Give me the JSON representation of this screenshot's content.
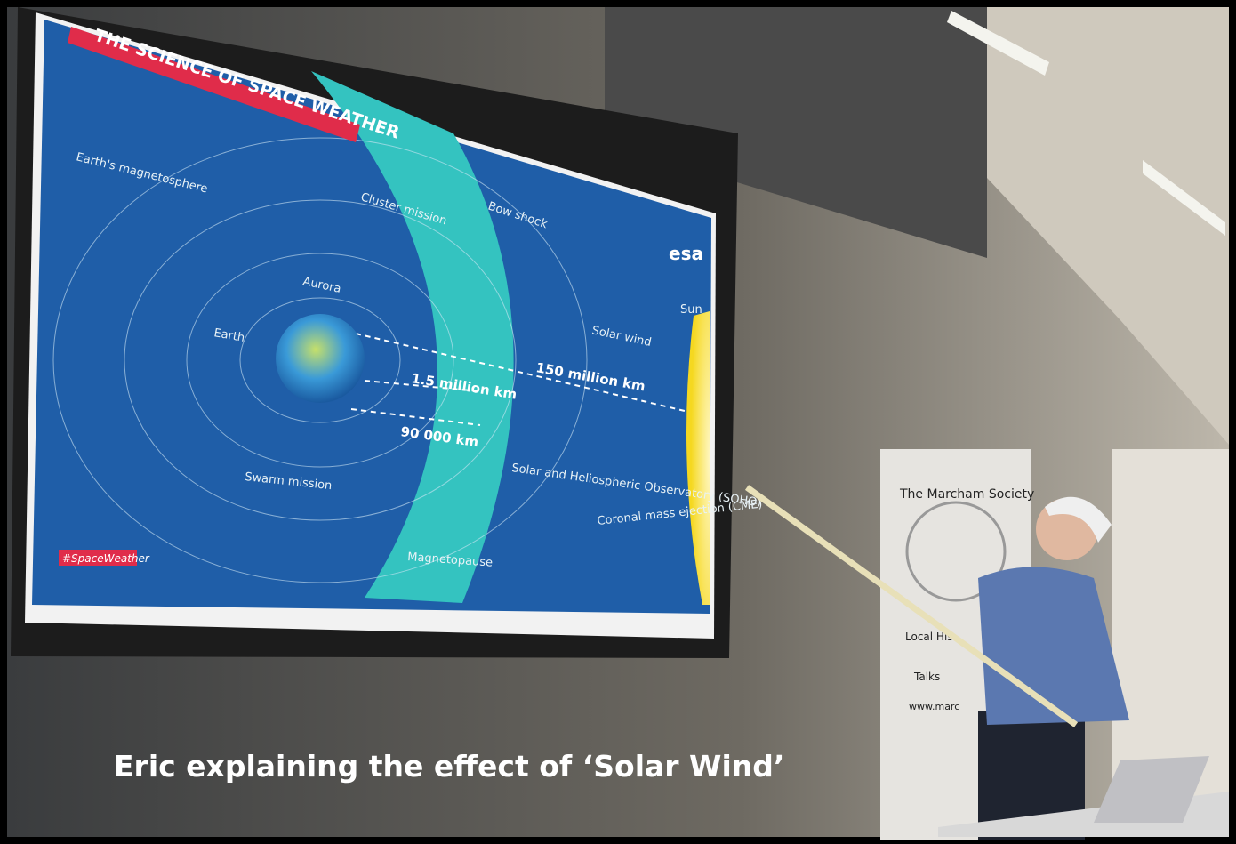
{
  "slide": {
    "title": "THE SCIENCE OF SPACE WEATHER",
    "labels": [
      "Earth's magnetosphere",
      "Cluster mission",
      "Bow shock",
      "Aurora",
      "Earth",
      "Solar wind",
      "Sun",
      "Swarm mission",
      "Solar and Heliospheric Observatory (SOHO)",
      "Coronal mass ejection (CME)",
      "Magnetopause"
    ],
    "distances": [
      "1.5 million km",
      "150 million km",
      "90 000 km"
    ],
    "hashtag": "#SpaceWeather",
    "logo": "esa"
  },
  "banner": {
    "title": "The Marcham Society",
    "lines": [
      "Local His",
      "Talks",
      "www.marc"
    ]
  },
  "caption": "Eric explaining the effect of ‘Solar Wind’"
}
